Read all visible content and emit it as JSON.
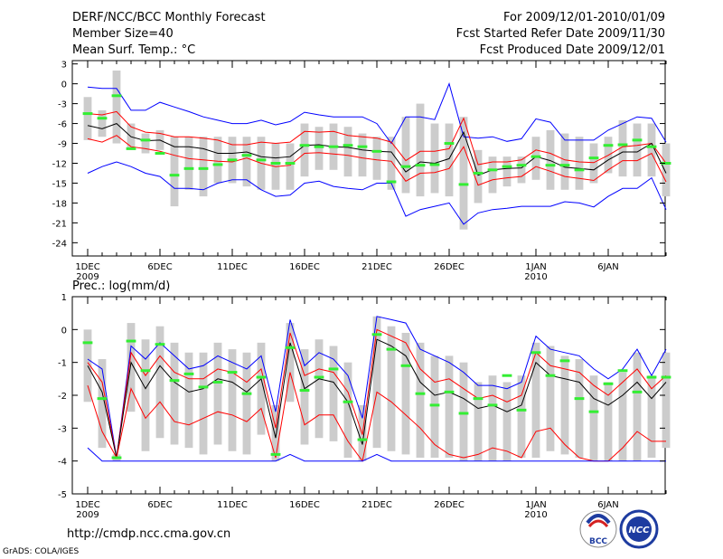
{
  "header": {
    "title": "DERF/NCC/BCC Monthly Forecast",
    "member_size": "Member Size=40",
    "variable": "Mean Surf. Temp.: °C",
    "period": "For 2009/12/01-2010/01/09",
    "started": "Fcst Started Refer Date 2009/11/30",
    "produced": "Fcst Produced Date 2009/12/01"
  },
  "footer": {
    "url": "http://cmdp.ncc.cma.gov.cn",
    "credit": "GrADS: COLA/IGES",
    "logo_bcc_text": "BCC",
    "logo_ncc_text": "NCC"
  },
  "colors": {
    "envelope": "#0000ff",
    "spread": "#ff0000",
    "mean": "#000000",
    "obs": "#33ee33",
    "box": "#cccccc"
  },
  "chart_data": [
    {
      "type": "line",
      "title": "Mean Surf. Temp.: °C",
      "ylabel": "°C",
      "ylim": [
        -26,
        3.5
      ],
      "yticks": [
        3,
        0,
        -3,
        -6,
        -9,
        -12,
        -15,
        -18,
        -21,
        -24
      ],
      "ytick_labels": [
        "3",
        "0",
        "-3",
        "-6",
        "-9",
        "-12",
        "-15",
        "-18",
        "-21",
        "-24"
      ],
      "x_day_range": [
        1,
        40
      ],
      "xticks": [
        {
          "day": 1,
          "label": "1DEC",
          "year": "2009"
        },
        {
          "day": 6,
          "label": "6DEC",
          "year": ""
        },
        {
          "day": 11,
          "label": "11DEC",
          "year": ""
        },
        {
          "day": 16,
          "label": "16DEC",
          "year": ""
        },
        {
          "day": 21,
          "label": "21DEC",
          "year": ""
        },
        {
          "day": 26,
          "label": "26DEC",
          "year": ""
        },
        {
          "day": 32,
          "label": "1JAN",
          "year": "2010"
        },
        {
          "day": 37,
          "label": "6JAN",
          "year": ""
        }
      ],
      "series": [
        {
          "name": "ensemble max",
          "color": "blue",
          "values": [
            -0.5,
            -0.7,
            -0.7,
            -4,
            -4,
            -2.8,
            -3.5,
            -4.2,
            -5,
            -5.5,
            -6,
            -6,
            -5.5,
            -6.2,
            -5.7,
            -4.3,
            -4.7,
            -5,
            -5,
            -5,
            -6,
            -9,
            -5,
            -5,
            -5.4,
            0,
            -8,
            -8.2,
            -8,
            -8.7,
            -8.3,
            -5.3,
            -5.8,
            -8.5,
            -8.5,
            -8.5,
            -7,
            -6,
            -5,
            -5.2,
            -8.8
          ]
        },
        {
          "name": "ensemble min",
          "color": "blue",
          "values": [
            -13.5,
            -12.5,
            -11.8,
            -12.5,
            -13.5,
            -14,
            -15.8,
            -15.8,
            -16,
            -15,
            -14.5,
            -14.5,
            -16,
            -17,
            -16.8,
            -15,
            -14.7,
            -15.5,
            -15.8,
            -16,
            -15,
            -15,
            -20,
            -19,
            -18.5,
            -18,
            -21.2,
            -19.5,
            -19,
            -18.8,
            -18.5,
            -18.5,
            -18.5,
            -17.8,
            -18,
            -18.6,
            -17,
            -15.8,
            -15.8,
            -14.2,
            -19
          ]
        },
        {
          "name": "upper spread",
          "color": "red",
          "values": [
            -4.5,
            -4.7,
            -4.2,
            -6.5,
            -7.3,
            -7.5,
            -8,
            -8,
            -8.2,
            -8.5,
            -9.2,
            -9.2,
            -8.8,
            -9,
            -8.8,
            -7.2,
            -7.3,
            -7.2,
            -7.8,
            -8,
            -8.2,
            -8.8,
            -11.6,
            -10.2,
            -10.2,
            -9.8,
            -5.2,
            -12.2,
            -11.8,
            -11.8,
            -11.5,
            -10,
            -10.5,
            -11.5,
            -11.8,
            -11.9,
            -10.8,
            -9.5,
            -9.3,
            -9,
            -12
          ]
        },
        {
          "name": "ensemble mean",
          "color": "black",
          "values": [
            -6.3,
            -6.8,
            -6,
            -8,
            -8.6,
            -8.5,
            -9.5,
            -9.5,
            -9.8,
            -10.5,
            -10.5,
            -10.3,
            -11,
            -11.2,
            -11,
            -9.3,
            -9.2,
            -9.5,
            -9.6,
            -10,
            -10.2,
            -10.3,
            -13.3,
            -11.8,
            -12,
            -11.3,
            -7.3,
            -13.8,
            -13,
            -12.8,
            -12.7,
            -11,
            -11.6,
            -12.6,
            -12.8,
            -13,
            -11.5,
            -10.3,
            -10.3,
            -9,
            -13.5
          ]
        },
        {
          "name": "lower spread",
          "color": "red",
          "values": [
            -8.3,
            -8.8,
            -7.8,
            -9.5,
            -9.8,
            -10.2,
            -10.8,
            -11.3,
            -11.5,
            -11.7,
            -11.8,
            -11.2,
            -12,
            -12.5,
            -12.3,
            -10.5,
            -10.4,
            -10.6,
            -10.8,
            -11.2,
            -11.5,
            -11.7,
            -14.7,
            -13.5,
            -13.4,
            -12.8,
            -9.5,
            -15.3,
            -14.5,
            -14.2,
            -14,
            -12.5,
            -13.2,
            -14,
            -14.3,
            -14.6,
            -13,
            -11.6,
            -11.6,
            -10.5,
            -14.8
          ]
        }
      ],
      "boxes": [
        [
          -8.5,
          -2
        ],
        [
          -8,
          -4
        ],
        [
          -9,
          2
        ],
        [
          -10,
          -6
        ],
        [
          -10.5,
          -7.5
        ],
        [
          -10,
          -7
        ],
        [
          -18.5,
          -8
        ],
        [
          -16,
          -8
        ],
        [
          -17,
          -8
        ],
        [
          -15,
          -8
        ],
        [
          -15,
          -8
        ],
        [
          -15.5,
          -8
        ],
        [
          -16,
          -8
        ],
        [
          -16,
          -9
        ],
        [
          -16,
          -9
        ],
        [
          -14,
          -6
        ],
        [
          -13,
          -6.5
        ],
        [
          -13,
          -6
        ],
        [
          -14,
          -6.5
        ],
        [
          -14,
          -7.5
        ],
        [
          -14.5,
          -8
        ],
        [
          -16,
          -8
        ],
        [
          -16.5,
          -5
        ],
        [
          -17,
          -3
        ],
        [
          -16.5,
          -6
        ],
        [
          -17,
          -6
        ],
        [
          -22,
          -5
        ],
        [
          -18,
          -10
        ],
        [
          -16.5,
          -11
        ],
        [
          -15.5,
          -11
        ],
        [
          -15,
          -11
        ],
        [
          -14.5,
          -8
        ],
        [
          -16,
          -7
        ],
        [
          -16,
          -7.5
        ],
        [
          -16,
          -8
        ],
        [
          -15,
          -9
        ],
        [
          -13.5,
          -8
        ],
        [
          -14,
          -5.5
        ],
        [
          -14,
          -6
        ],
        [
          -14,
          -6
        ],
        [
          -17,
          -9
        ]
      ],
      "observed": [
        -4.5,
        -5.2,
        -1.8,
        -9.8,
        -8.5,
        -10.5,
        -13.8,
        -12.8,
        -12.8,
        -12.2,
        -11.5,
        -10.8,
        -11.5,
        -12,
        -12,
        -9.3,
        -9.5,
        -9.5,
        -9.3,
        -9.5,
        -10.2,
        -14.8,
        -12.5,
        -12.3,
        -12.2,
        -9,
        -15.2,
        -13.5,
        -13,
        -12.5,
        -12.3,
        -11,
        -12.3,
        -12.3,
        -13,
        -11.2,
        -9.3,
        -9.2,
        -8.5,
        -9.5,
        -12
      ]
    },
    {
      "type": "line",
      "title": "Prec.: log(mm/d)",
      "ylabel": "log(mm/d)",
      "ylim": [
        -5,
        1
      ],
      "yticks": [
        1,
        0,
        -1,
        -2,
        -3,
        -4,
        -5
      ],
      "ytick_labels": [
        "1",
        "0",
        "-1",
        "-2",
        "-3",
        "-4",
        "-5"
      ],
      "x_day_range": [
        1,
        40
      ],
      "xticks": [
        {
          "day": 1,
          "label": "1DEC",
          "year": "2009"
        },
        {
          "day": 6,
          "label": "6DEC",
          "year": ""
        },
        {
          "day": 11,
          "label": "11DEC",
          "year": ""
        },
        {
          "day": 16,
          "label": "16DEC",
          "year": ""
        },
        {
          "day": 21,
          "label": "21DEC",
          "year": ""
        },
        {
          "day": 26,
          "label": "26DEC",
          "year": ""
        },
        {
          "day": 32,
          "label": "1JAN",
          "year": "2010"
        },
        {
          "day": 37,
          "label": "6JAN",
          "year": ""
        }
      ],
      "series": [
        {
          "name": "ensemble max",
          "color": "blue",
          "values": [
            -0.9,
            -1.2,
            -3.9,
            -0.5,
            -0.9,
            -0.4,
            -0.8,
            -1.2,
            -1.1,
            -0.8,
            -1.0,
            -1.2,
            -0.8,
            -2.5,
            0.3,
            -1.1,
            -0.7,
            -0.9,
            -1.4,
            -2.7,
            0.4,
            0.3,
            0.2,
            -0.6,
            -0.8,
            -1.0,
            -1.3,
            -1.7,
            -1.7,
            -1.8,
            -1.6,
            -0.2,
            -0.6,
            -0.7,
            -0.8,
            -1.2,
            -1.5,
            -1.2,
            -0.6,
            -1.4,
            -0.6
          ]
        },
        {
          "name": "upper spread",
          "color": "red",
          "values": [
            -1.0,
            -1.6,
            -3.9,
            -0.7,
            -1.4,
            -0.8,
            -1.3,
            -1.5,
            -1.5,
            -1.2,
            -1.3,
            -1.6,
            -1.2,
            -3.0,
            -0.1,
            -1.4,
            -1.2,
            -1.3,
            -1.9,
            -3.2,
            0.0,
            -0.2,
            -0.4,
            -1.2,
            -1.6,
            -1.5,
            -1.8,
            -2.1,
            -2.0,
            -2.2,
            -2.0,
            -0.7,
            -1.1,
            -1.2,
            -1.3,
            -1.7,
            -2.0,
            -1.6,
            -1.2,
            -1.8,
            -1.4
          ]
        },
        {
          "name": "ensemble mean",
          "color": "black",
          "values": [
            -1.1,
            -1.9,
            -3.9,
            -1.0,
            -1.8,
            -1.1,
            -1.6,
            -1.9,
            -1.8,
            -1.5,
            -1.6,
            -1.9,
            -1.5,
            -3.3,
            -0.4,
            -1.8,
            -1.5,
            -1.6,
            -2.2,
            -3.5,
            -0.3,
            -0.5,
            -0.8,
            -1.6,
            -2.0,
            -1.9,
            -2.1,
            -2.4,
            -2.3,
            -2.5,
            -2.3,
            -1.0,
            -1.4,
            -1.5,
            -1.6,
            -2.1,
            -2.3,
            -2.0,
            -1.6,
            -2.1,
            -1.6
          ]
        },
        {
          "name": "lower spread",
          "color": "red",
          "values": [
            -1.7,
            -3.1,
            -3.9,
            -1.8,
            -2.7,
            -2.2,
            -2.8,
            -2.9,
            -2.7,
            -2.5,
            -2.6,
            -2.8,
            -2.4,
            -3.9,
            -1.3,
            -2.9,
            -2.6,
            -2.6,
            -3.4,
            -4.0,
            -1.9,
            -2.2,
            -2.6,
            -3.0,
            -3.5,
            -3.8,
            -3.9,
            -3.8,
            -3.6,
            -3.7,
            -3.9,
            -3.1,
            -3.0,
            -3.5,
            -3.9,
            -4.0,
            -4.0,
            -3.6,
            -3.1,
            -3.4,
            -3.4
          ]
        },
        {
          "name": "ensemble min",
          "color": "blue",
          "values": [
            -3.6,
            -4.0,
            -4.0,
            -4.0,
            -4.0,
            -4.0,
            -4.0,
            -4.0,
            -4.0,
            -4.0,
            -4.0,
            -4.0,
            -4.0,
            -4.0,
            -3.8,
            -4.0,
            -4.0,
            -4.0,
            -4.0,
            -4.0,
            -3.8,
            -4.0,
            -4.0,
            -4.0,
            -4.0,
            -4.0,
            -4.0,
            -4.0,
            -4.0,
            -4.0,
            -4.0,
            -4.0,
            -4.0,
            -4.0,
            -4.0,
            -4.0,
            -4.0,
            -4.0,
            -4.0,
            -4.0,
            -4.0
          ]
        }
      ],
      "boxes": [
        [
          -2.2,
          0.0
        ],
        [
          -3.6,
          -0.9
        ],
        [
          -4.0,
          -3.8
        ],
        [
          -2.5,
          0.2
        ],
        [
          -3.7,
          -0.3
        ],
        [
          -3.3,
          0.1
        ],
        [
          -3.5,
          -0.4
        ],
        [
          -3.6,
          -0.7
        ],
        [
          -3.8,
          -0.7
        ],
        [
          -3.5,
          -0.4
        ],
        [
          -3.7,
          -0.6
        ],
        [
          -3.8,
          -0.7
        ],
        [
          -3.2,
          -0.4
        ],
        [
          -4.0,
          -2.3
        ],
        [
          -2.2,
          0.2
        ],
        [
          -3.5,
          -0.6
        ],
        [
          -3.3,
          -0.3
        ],
        [
          -3.4,
          -0.5
        ],
        [
          -3.9,
          -1.0
        ],
        [
          -4.0,
          -2.3
        ],
        [
          -3.6,
          0.4
        ],
        [
          -3.7,
          0.1
        ],
        [
          -3.8,
          -0.1
        ],
        [
          -3.9,
          -0.4
        ],
        [
          -3.9,
          -0.8
        ],
        [
          -3.9,
          -0.8
        ],
        [
          -4.0,
          -1.0
        ],
        [
          -4.0,
          -1.6
        ],
        [
          -4.0,
          -1.4
        ],
        [
          -4.0,
          -1.6
        ],
        [
          -3.9,
          -1.4
        ],
        [
          -3.9,
          -0.4
        ],
        [
          -3.7,
          -0.5
        ],
        [
          -3.8,
          -0.8
        ],
        [
          -3.9,
          -0.9
        ],
        [
          -4.0,
          -1.4
        ],
        [
          -4.0,
          -1.6
        ],
        [
          -4.0,
          -1.3
        ],
        [
          -4.0,
          -0.7
        ],
        [
          -3.9,
          -1.4
        ],
        [
          -3.6,
          -0.7
        ]
      ],
      "observed": [
        -0.4,
        -2.1,
        -3.9,
        -0.35,
        -1.25,
        -0.45,
        -1.55,
        -1.35,
        -1.75,
        -1.6,
        -1.3,
        -1.95,
        -1.45,
        -3.8,
        -0.55,
        -1.85,
        -1.45,
        -1.2,
        -2.2,
        -3.35,
        -0.15,
        -0.6,
        -1.1,
        -1.95,
        -2.3,
        -1.9,
        -2.55,
        -2.1,
        -2.3,
        -1.4,
        -2.45,
        -0.7,
        -1.4,
        -0.95,
        -2.1,
        -2.5,
        -1.65,
        -1.25,
        -1.9,
        -1.45,
        -1.45
      ]
    }
  ]
}
